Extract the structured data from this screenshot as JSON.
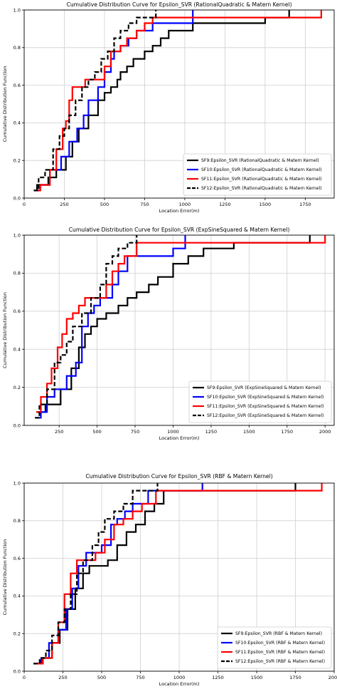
{
  "chart_data": [
    {
      "type": "line",
      "title": "Cumulative Distribution Curve for Epsilon_SVR (RationalQuadratic & Matern Kernel)",
      "xlabel": "Location Error(m)",
      "ylabel": "Cumulative Distribution Function",
      "xlim": [
        0,
        1930
      ],
      "ylim": [
        0,
        1.0
      ],
      "xticks": [
        "0",
        "250",
        "500",
        "750",
        "1000",
        "1250",
        "1500",
        "1750"
      ],
      "yticks": [
        "0.0",
        "0.2",
        "0.4",
        "0.6",
        "0.8",
        "1.0"
      ],
      "grid": true,
      "legend_position": "lower-right",
      "series": [
        {
          "name": "SF9:Epsilon_SVR (RationalQuadratic & Matern Kernel)",
          "color": "#000000",
          "style": "solid",
          "x": [
            60,
            80,
            150,
            200,
            260,
            300,
            340,
            400,
            460,
            500,
            540,
            580,
            600,
            640,
            680,
            720,
            750,
            800,
            850,
            900,
            960,
            1050,
            1500,
            1650
          ],
          "y": [
            0.04,
            0.07,
            0.11,
            0.15,
            0.22,
            0.3,
            0.37,
            0.44,
            0.52,
            0.56,
            0.59,
            0.63,
            0.67,
            0.7,
            0.74,
            0.74,
            0.78,
            0.81,
            0.85,
            0.89,
            0.89,
            0.93,
            0.96,
            1.0
          ]
        },
        {
          "name": "SF10:Epsilon_SVR (RationalQuadratic & Matern Kernel)",
          "color": "#0000ff",
          "style": "solid",
          "x": [
            60,
            100,
            160,
            230,
            280,
            330,
            370,
            400,
            460,
            500,
            540,
            560,
            600,
            650,
            700,
            750,
            800,
            1050
          ],
          "y": [
            0.04,
            0.07,
            0.15,
            0.22,
            0.3,
            0.37,
            0.44,
            0.52,
            0.59,
            0.67,
            0.74,
            0.78,
            0.81,
            0.85,
            0.89,
            0.89,
            0.93,
            1.0
          ]
        },
        {
          "name": "SF11:Epsilon_SVR (RationalQuadratic & Matern Kernel)",
          "color": "#ff0000",
          "style": "solid",
          "x": [
            60,
            100,
            160,
            200,
            240,
            260,
            280,
            300,
            330,
            380,
            420,
            500,
            540,
            600,
            640,
            700,
            750,
            800,
            1850
          ],
          "y": [
            0.04,
            0.07,
            0.15,
            0.26,
            0.37,
            0.41,
            0.52,
            0.59,
            0.59,
            0.63,
            0.63,
            0.7,
            0.78,
            0.81,
            0.85,
            0.89,
            0.93,
            0.96,
            1.0
          ]
        },
        {
          "name": "SF12:Epsilon_SVR (RationalQuadratic & Matern Kernel)",
          "color": "#000000",
          "style": "dashed",
          "x": [
            60,
            90,
            130,
            180,
            220,
            250,
            280,
            320,
            360,
            400,
            440,
            480,
            520,
            560,
            600,
            650,
            700,
            760,
            820
          ],
          "y": [
            0.04,
            0.11,
            0.15,
            0.26,
            0.33,
            0.37,
            0.44,
            0.52,
            0.59,
            0.63,
            0.67,
            0.74,
            0.78,
            0.85,
            0.89,
            0.93,
            0.96,
            0.96,
            1.0
          ]
        }
      ]
    },
    {
      "type": "line",
      "title": "Cumulative Distribution Curve for Epsilon_SVR (ExpSineSquared & Matern Kernel)",
      "xlabel": "Location Error(m)",
      "ylabel": "Cumulative Distribution Function",
      "xlim": [
        20,
        2060
      ],
      "ylim": [
        0,
        1.0
      ],
      "xticks": [
        "250",
        "500",
        "750",
        "1000",
        "1250",
        "1500",
        "1750",
        "2000"
      ],
      "yticks": [
        "0.0",
        "0.2",
        "0.4",
        "0.6",
        "0.8",
        "1.0"
      ],
      "grid": true,
      "legend_position": "lower-right",
      "series": [
        {
          "name": "SF9:Epsilon_SVR (ExpSineSquared & Matern Kernel)",
          "color": "#000000",
          "style": "solid",
          "x": [
            100,
            160,
            260,
            330,
            380,
            420,
            460,
            500,
            560,
            640,
            700,
            760,
            840,
            900,
            1000,
            1100,
            1200,
            1400,
            1900
          ],
          "y": [
            0.07,
            0.11,
            0.19,
            0.3,
            0.41,
            0.48,
            0.52,
            0.56,
            0.59,
            0.63,
            0.67,
            0.7,
            0.74,
            0.78,
            0.85,
            0.89,
            0.93,
            0.96,
            1.0
          ]
        },
        {
          "name": "SF10:Epsilon_SVR (ExpSineSquared & Matern Kernel)",
          "color": "#0000ff",
          "style": "solid",
          "x": [
            100,
            130,
            170,
            220,
            300,
            360,
            400,
            440,
            480,
            520,
            600,
            640,
            700,
            820,
            1000,
            1080
          ],
          "y": [
            0.04,
            0.07,
            0.15,
            0.19,
            0.26,
            0.33,
            0.52,
            0.59,
            0.63,
            0.67,
            0.74,
            0.81,
            0.89,
            0.89,
            0.93,
            1.0
          ]
        },
        {
          "name": "SF11:Epsilon_SVR (ExpSineSquared & Matern Kernel)",
          "color": "#ff0000",
          "style": "solid",
          "x": [
            100,
            130,
            170,
            200,
            240,
            270,
            300,
            340,
            380,
            420,
            500,
            560,
            600,
            640,
            680,
            760,
            2000
          ],
          "y": [
            0.07,
            0.15,
            0.22,
            0.3,
            0.41,
            0.48,
            0.56,
            0.59,
            0.63,
            0.67,
            0.67,
            0.74,
            0.81,
            0.85,
            0.89,
            0.96,
            1.0
          ]
        },
        {
          "name": "SF12:Epsilon_SVR (ExpSineSquared & Matern Kernel)",
          "color": "#000000",
          "style": "dashed",
          "x": [
            90,
            120,
            170,
            220,
            260,
            300,
            340,
            400,
            460,
            520,
            560,
            600,
            640,
            700,
            760
          ],
          "y": [
            0.04,
            0.11,
            0.19,
            0.33,
            0.37,
            0.44,
            0.52,
            0.59,
            0.67,
            0.74,
            0.85,
            0.89,
            0.93,
            0.96,
            1.0
          ]
        }
      ]
    },
    {
      "type": "line",
      "title": "Cumulative Distribution Curve for Epsilon_SVR (RBF & Matern Kernel)",
      "xlabel": "Location Error(m)",
      "ylabel": "Cumulative Distribution Function",
      "xlim": [
        0,
        2000
      ],
      "ylim": [
        0,
        1.0
      ],
      "xticks": [
        "0",
        "250",
        "500",
        "750",
        "1000",
        "1250",
        "1500",
        "1750",
        "2000"
      ],
      "yticks": [
        "0.0",
        "0.2",
        "0.4",
        "0.6",
        "0.8",
        "1.0"
      ],
      "grid": true,
      "legend_position": "lower-right",
      "series": [
        {
          "name": "SF9:Epsilon_SVR (RBF & Matern Kernel)",
          "color": "#000000",
          "style": "solid",
          "x": [
            60,
            120,
            180,
            230,
            280,
            330,
            380,
            420,
            460,
            540,
            600,
            660,
            720,
            780,
            840,
            900,
            1750
          ],
          "y": [
            0.04,
            0.07,
            0.15,
            0.22,
            0.33,
            0.44,
            0.52,
            0.56,
            0.56,
            0.59,
            0.67,
            0.74,
            0.78,
            0.85,
            0.89,
            0.96,
            1.0
          ]
        },
        {
          "name": "SF10:Epsilon_SVR (RBF & Matern Kernel)",
          "color": "#0000ff",
          "style": "solid",
          "x": [
            60,
            110,
            160,
            220,
            270,
            310,
            350,
            400,
            450,
            500,
            560,
            600,
            650,
            700,
            800,
            1150
          ],
          "y": [
            0.04,
            0.07,
            0.15,
            0.22,
            0.33,
            0.44,
            0.56,
            0.63,
            0.63,
            0.67,
            0.78,
            0.81,
            0.85,
            0.89,
            0.96,
            1.0
          ]
        },
        {
          "name": "SF11:Epsilon_SVR (RBF & Matern Kernel)",
          "color": "#ff0000",
          "style": "solid",
          "x": [
            60,
            120,
            180,
            220,
            260,
            300,
            340,
            400,
            460,
            520,
            580,
            640,
            700,
            760,
            850,
            1920
          ],
          "y": [
            0.04,
            0.07,
            0.15,
            0.26,
            0.41,
            0.52,
            0.59,
            0.59,
            0.63,
            0.7,
            0.78,
            0.81,
            0.85,
            0.89,
            0.96,
            1.0
          ]
        },
        {
          "name": "SF12:Epsilon_SVR (RBF & Matern Kernel)",
          "color": "#000000",
          "style": "dashed",
          "x": [
            60,
            100,
            140,
            180,
            220,
            260,
            300,
            340,
            380,
            440,
            480,
            520,
            580,
            640,
            700,
            780,
            860
          ],
          "y": [
            0.04,
            0.07,
            0.11,
            0.19,
            0.26,
            0.33,
            0.41,
            0.52,
            0.59,
            0.67,
            0.74,
            0.81,
            0.85,
            0.89,
            0.96,
            0.96,
            1.0
          ]
        }
      ]
    }
  ]
}
